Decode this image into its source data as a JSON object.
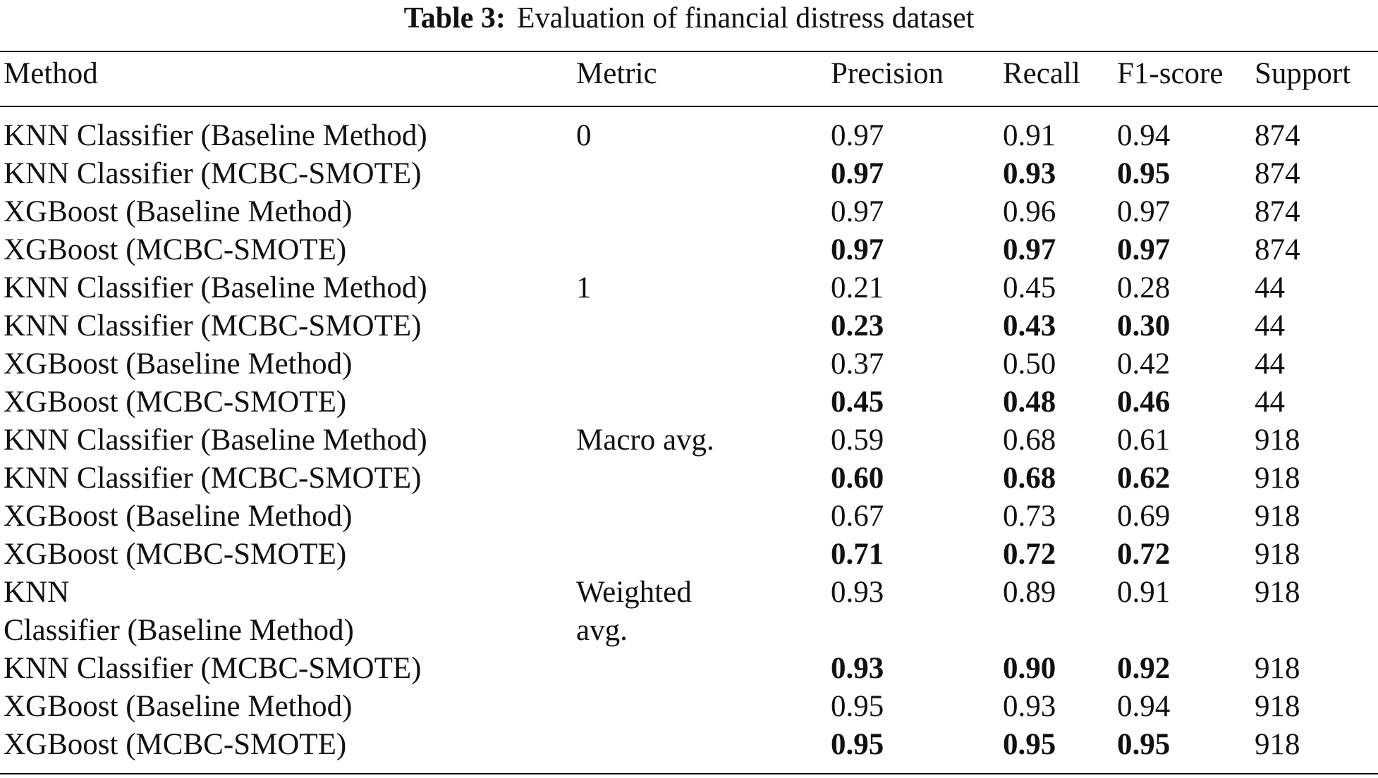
{
  "table": {
    "caption_label": "Table 3:",
    "caption_text": "Evaluation of financial distress dataset",
    "headers": {
      "method": "Method",
      "metric": "Metric",
      "precision": "Precision",
      "recall": "Recall",
      "f1": "F1-score",
      "support": "Support"
    },
    "rows": [
      {
        "method": "KNN Classifier (Baseline Method)",
        "metric": "0",
        "precision": "0.97",
        "recall": "0.91",
        "f1": "0.94",
        "support": "874",
        "bold": false
      },
      {
        "method": "KNN Classifier (MCBC-SMOTE)",
        "metric": "",
        "precision": "0.97",
        "recall": "0.93",
        "f1": "0.95",
        "support": "874",
        "bold": true
      },
      {
        "method": "XGBoost (Baseline Method)",
        "metric": "",
        "precision": "0.97",
        "recall": "0.96",
        "f1": "0.97",
        "support": "874",
        "bold": false
      },
      {
        "method": "XGBoost (MCBC-SMOTE)",
        "metric": "",
        "precision": "0.97",
        "recall": "0.97",
        "f1": "0.97",
        "support": "874",
        "bold": true
      },
      {
        "method": "KNN Classifier (Baseline Method)",
        "metric": "1",
        "precision": "0.21",
        "recall": "0.45",
        "f1": "0.28",
        "support": "44",
        "bold": false
      },
      {
        "method": "KNN Classifier (MCBC-SMOTE)",
        "metric": "",
        "precision": "0.23",
        "recall": "0.43",
        "f1": "0.30",
        "support": "44",
        "bold": true
      },
      {
        "method": "XGBoost (Baseline Method)",
        "metric": "",
        "precision": "0.37",
        "recall": "0.50",
        "f1": "0.42",
        "support": "44",
        "bold": false
      },
      {
        "method": "XGBoost (MCBC-SMOTE)",
        "metric": "",
        "precision": "0.45",
        "recall": "0.48",
        "f1": "0.46",
        "support": "44",
        "bold": true
      },
      {
        "method": "KNN Classifier (Baseline Method)",
        "metric": "Macro avg.",
        "precision": "0.59",
        "recall": "0.68",
        "f1": "0.61",
        "support": "918",
        "bold": false
      },
      {
        "method": "KNN Classifier (MCBC-SMOTE)",
        "metric": "",
        "precision": "0.60",
        "recall": "0.68",
        "f1": "0.62",
        "support": "918",
        "bold": true
      },
      {
        "method": "XGBoost (Baseline Method)",
        "metric": "",
        "precision": "0.67",
        "recall": "0.73",
        "f1": "0.69",
        "support": "918",
        "bold": false
      },
      {
        "method": "XGBoost (MCBC-SMOTE)",
        "metric": "",
        "precision": "0.71",
        "recall": "0.72",
        "f1": "0.72",
        "support": "918",
        "bold": true
      },
      {
        "method": "KNN\nClassifier (Baseline Method)",
        "metric": "Weighted\navg.",
        "precision": "0.93",
        "recall": "0.89",
        "f1": "0.91",
        "support": "918",
        "bold": false
      },
      {
        "method": "KNN Classifier (MCBC-SMOTE)",
        "metric": "",
        "precision": "0.93",
        "recall": "0.90",
        "f1": "0.92",
        "support": "918",
        "bold": true
      },
      {
        "method": "XGBoost (Baseline Method)",
        "metric": "",
        "precision": "0.95",
        "recall": "0.93",
        "f1": "0.94",
        "support": "918",
        "bold": false
      },
      {
        "method": "XGBoost (MCBC-SMOTE)",
        "metric": "",
        "precision": "0.95",
        "recall": "0.95",
        "f1": "0.95",
        "support": "918",
        "bold": true
      }
    ]
  }
}
